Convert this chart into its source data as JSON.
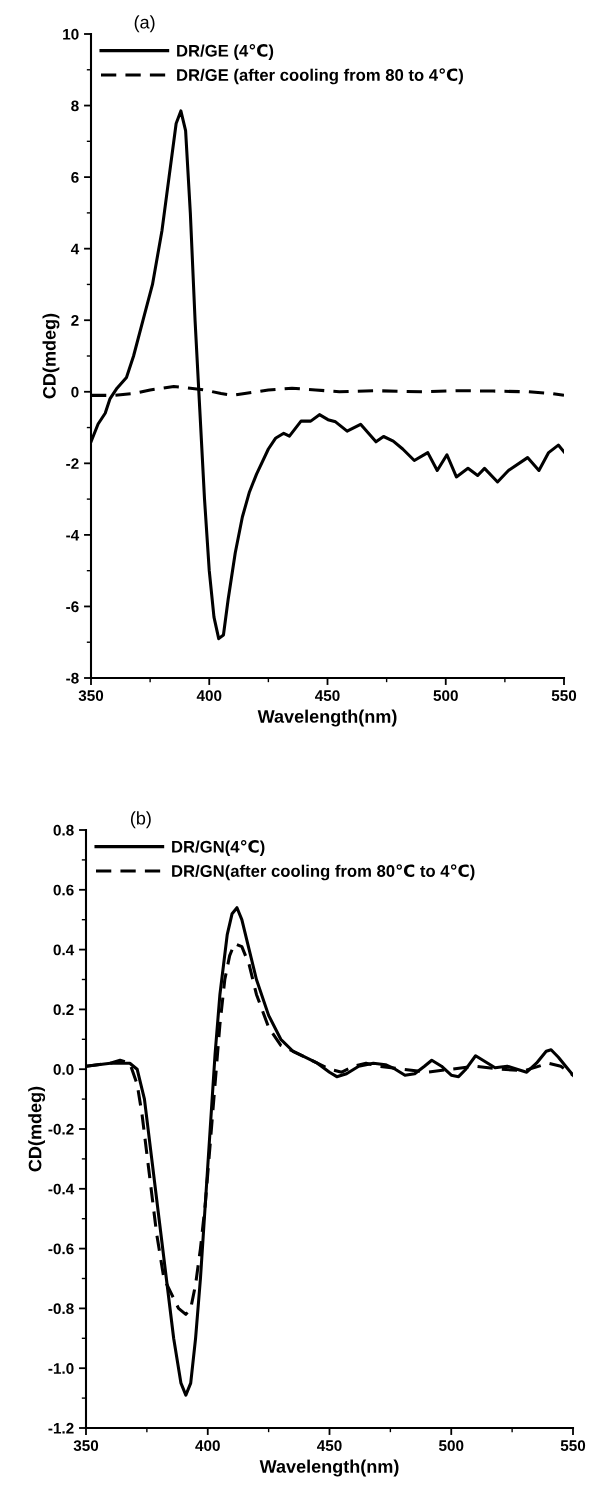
{
  "chart_data": [
    {
      "type": "line",
      "title": "(a)",
      "xlabel": "Wavelength(nm)",
      "ylabel": "CD(mdeg)",
      "xlim": [
        350,
        550
      ],
      "ylim": [
        -8,
        10
      ],
      "xticks": [
        350,
        400,
        450,
        500,
        550
      ],
      "yticks": [
        -8,
        -6,
        -4,
        -2,
        0,
        2,
        4,
        6,
        8,
        10
      ],
      "legend": "top left",
      "grid": false,
      "series": [
        {
          "name": "DR/GE (4℃)",
          "color": "#000000",
          "line_style": "solid",
          "x": [
            350,
            353,
            356,
            358,
            361,
            365,
            368,
            372,
            376,
            380,
            383,
            386,
            388,
            390,
            392,
            394,
            396,
            398,
            400,
            402,
            404,
            406,
            408,
            411,
            414,
            417,
            420,
            425,
            428,
            431.5,
            433.9,
            438.8,
            442.9,
            446.6,
            450.2,
            453.4,
            458.3,
            464,
            470.5,
            473.7,
            477.8,
            481.8,
            486.7,
            492.4,
            496.4,
            500.5,
            504.5,
            509.4,
            513.5,
            516.4,
            521.9,
            526.5,
            534.6,
            539.4,
            543.5,
            547.6,
            550
          ],
          "values": [
            -1.4,
            -0.9,
            -0.6,
            -0.2,
            0.1,
            0.4,
            1.0,
            2.0,
            3.0,
            4.5,
            6.0,
            7.5,
            7.85,
            7.3,
            5.0,
            2.0,
            -0.5,
            -3.0,
            -5.0,
            -6.3,
            -6.9,
            -6.8,
            -5.8,
            -4.5,
            -3.5,
            -2.8,
            -2.3,
            -1.6,
            -1.3,
            -1.16,
            -1.24,
            -0.82,
            -0.82,
            -0.64,
            -0.78,
            -0.84,
            -1.1,
            -0.91,
            -1.4,
            -1.25,
            -1.38,
            -1.6,
            -1.92,
            -1.7,
            -2.2,
            -1.76,
            -2.38,
            -2.14,
            -2.34,
            -2.14,
            -2.52,
            -2.2,
            -1.84,
            -2.2,
            -1.7,
            -1.49,
            -1.68
          ]
        },
        {
          "name": "DR/GE (after cooling from 80 to 4℃)",
          "color": "#000000",
          "line_style": "dashed",
          "x": [
            350,
            360,
            368,
            375,
            385,
            392,
            398,
            405,
            410,
            415,
            425,
            435,
            445,
            455,
            470,
            490,
            505,
            520,
            535,
            545,
            550
          ],
          "values": [
            -0.1,
            -0.1,
            -0.05,
            0.05,
            0.15,
            0.1,
            0.05,
            -0.05,
            -0.1,
            -0.05,
            0.05,
            0.1,
            0.05,
            0.0,
            0.03,
            0.0,
            0.03,
            0.02,
            0.0,
            -0.05,
            -0.1
          ]
        }
      ]
    },
    {
      "type": "line",
      "title": "(b)",
      "xlabel": "Wavelength(nm)",
      "ylabel": "CD(mdeg)",
      "xlim": [
        350,
        550
      ],
      "ylim": [
        -1.2,
        0.8
      ],
      "xticks": [
        350,
        400,
        450,
        500,
        550
      ],
      "yticks": [
        {
          "value": -1.2,
          "label": "-1.2"
        },
        {
          "value": -1.0,
          "label": "-1.0"
        },
        {
          "value": -0.8,
          "label": "-0.8"
        },
        {
          "value": -0.6,
          "label": "-0.6"
        },
        {
          "value": -0.4,
          "label": "-0.4"
        },
        {
          "value": -0.2,
          "label": "-0.2"
        },
        {
          "value": 0.0,
          "label": "0.0"
        },
        {
          "value": 0.2,
          "label": "0.2"
        },
        {
          "value": 0.4,
          "label": "0.4"
        },
        {
          "value": 0.6,
          "label": "0.6"
        },
        {
          "value": 0.8,
          "label": "0.8"
        }
      ],
      "legend": "top left",
      "grid": false,
      "series": [
        {
          "name": "DR/GN(4℃)",
          "color": "#000000",
          "line_style": "solid",
          "x": [
            350,
            360,
            368,
            371,
            374,
            377,
            380,
            383,
            386,
            389,
            391,
            393,
            395,
            397,
            399,
            401,
            403,
            405,
            408,
            410,
            412,
            414,
            417,
            420,
            425,
            430,
            435,
            440,
            445,
            450,
            453,
            457,
            462,
            468,
            473,
            477,
            481,
            485,
            489,
            492,
            496,
            500,
            503,
            506,
            510,
            514,
            518,
            523,
            527,
            531,
            535,
            539,
            541,
            544,
            547,
            550
          ],
          "values": [
            0.01,
            0.02,
            0.02,
            0.0,
            -0.1,
            -0.3,
            -0.5,
            -0.7,
            -0.9,
            -1.05,
            -1.09,
            -1.05,
            -0.9,
            -0.7,
            -0.45,
            -0.2,
            0.05,
            0.25,
            0.45,
            0.52,
            0.54,
            0.5,
            0.4,
            0.3,
            0.18,
            0.1,
            0.06,
            0.04,
            0.02,
            -0.01,
            -0.025,
            -0.015,
            0.01,
            0.02,
            0.015,
            0.0,
            -0.02,
            -0.015,
            0.01,
            0.03,
            0.01,
            -0.02,
            -0.025,
            0.0,
            0.045,
            0.025,
            0.005,
            0.01,
            0.0,
            -0.01,
            0.02,
            0.06,
            0.065,
            0.04,
            0.01,
            -0.02
          ]
        },
        {
          "name": "DR/GN(after cooling from 80℃ to 4℃)",
          "color": "#000000",
          "line_style": "dashed",
          "x": [
            350,
            360,
            364,
            368,
            371,
            373,
            376,
            379,
            382,
            385,
            388,
            391,
            393,
            395,
            397,
            399,
            401,
            403,
            405,
            407,
            409,
            411,
            414,
            417,
            420,
            425,
            430,
            440,
            450,
            455,
            460,
            465,
            470,
            480,
            490,
            500,
            510,
            520,
            530,
            540,
            545,
            550
          ],
          "values": [
            0.01,
            0.02,
            0.03,
            0.02,
            -0.05,
            -0.15,
            -0.35,
            -0.55,
            -0.7,
            -0.75,
            -0.8,
            -0.82,
            -0.8,
            -0.72,
            -0.6,
            -0.45,
            -0.25,
            -0.05,
            0.15,
            0.3,
            0.38,
            0.42,
            0.41,
            0.35,
            0.25,
            0.14,
            0.08,
            0.04,
            0.0,
            -0.01,
            0.01,
            0.02,
            0.01,
            0.0,
            -0.01,
            0.0,
            0.01,
            0.0,
            -0.005,
            0.02,
            0.01,
            -0.02
          ]
        }
      ]
    }
  ]
}
